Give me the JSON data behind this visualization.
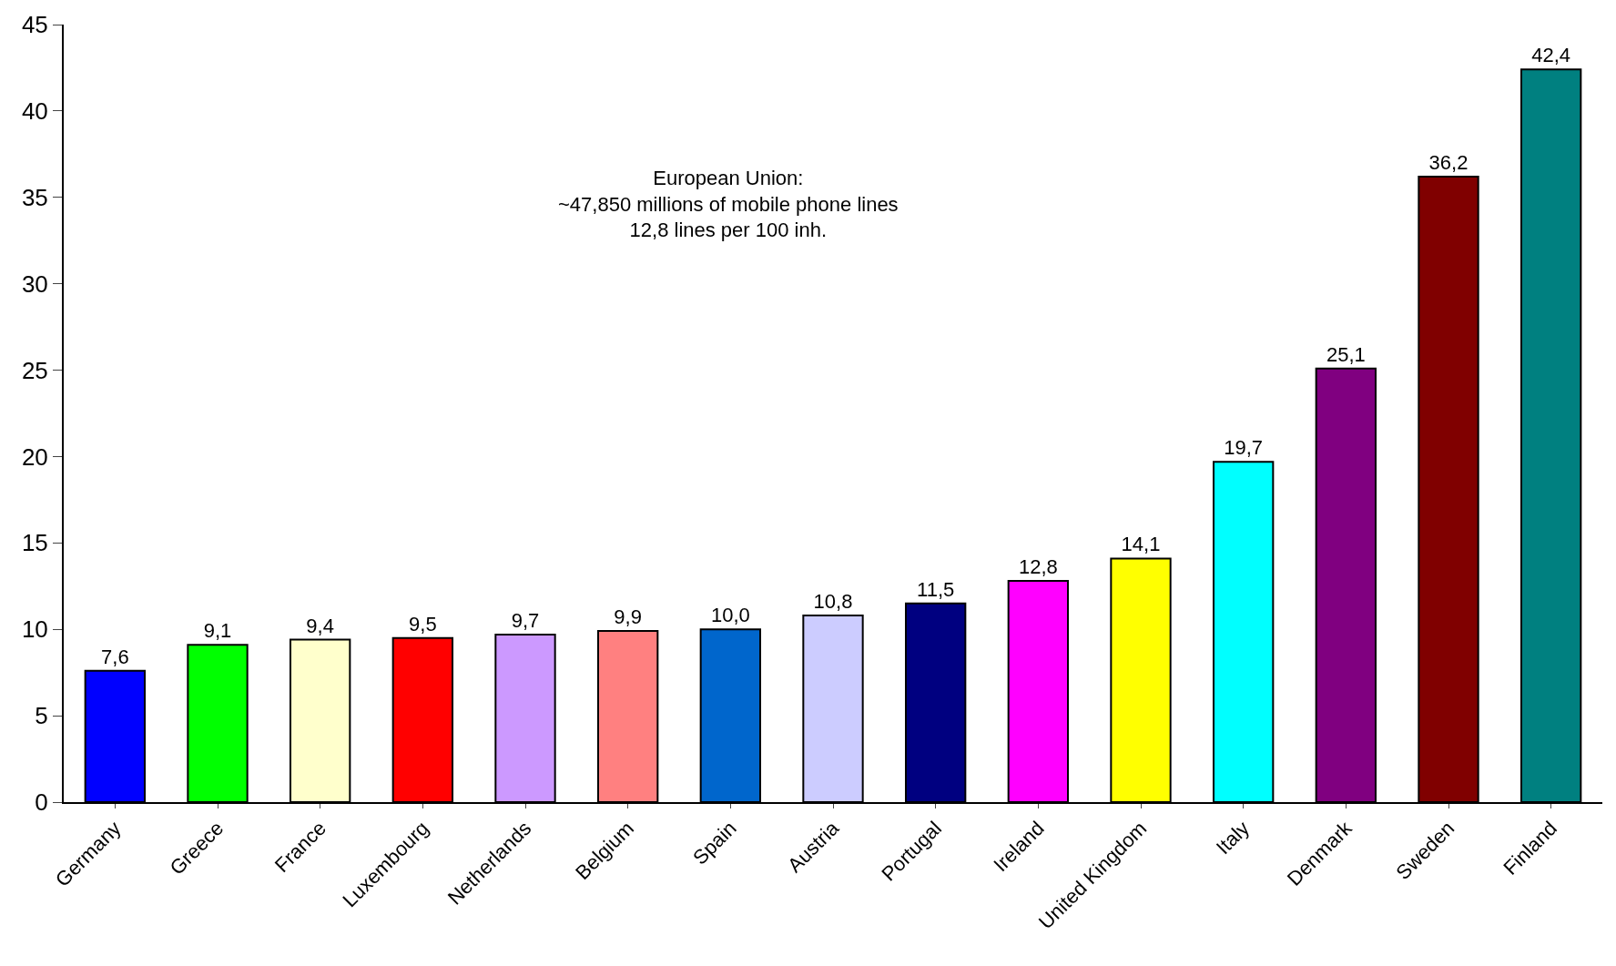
{
  "chart_data": {
    "type": "bar",
    "categories": [
      "Germany",
      "Greece",
      "France",
      "Luxembourg",
      "Netherlands",
      "Belgium",
      "Spain",
      "Austria",
      "Portugal",
      "Ireland",
      "United Kingdom",
      "Italy",
      "Denmark",
      "Sweden",
      "Finland"
    ],
    "values": [
      7.6,
      9.1,
      9.4,
      9.5,
      9.7,
      9.9,
      10.0,
      10.8,
      11.5,
      12.8,
      14.1,
      19.7,
      25.1,
      36.2,
      42.4
    ],
    "colors": [
      "#0000ff",
      "#00ff00",
      "#ffffcc",
      "#ff0000",
      "#cc99ff",
      "#ff8080",
      "#0066cc",
      "#ccccff",
      "#000080",
      "#ff00ff",
      "#ffff00",
      "#00ffff",
      "#800080",
      "#800000",
      "#008080"
    ],
    "value_labels": [
      "7,6",
      "9,1",
      "9,4",
      "9,5",
      "9,7",
      "9,9",
      "10,0",
      "10,8",
      "11,5",
      "12,8",
      "14,1",
      "19,7",
      "25,1",
      "36,2",
      "42,4"
    ],
    "ylim": [
      0,
      45
    ],
    "yticks": [
      0,
      5,
      10,
      15,
      20,
      25,
      30,
      35,
      40,
      45
    ],
    "annotations": [
      "European Union:\n~47,850 millions of mobile phone lines\n12,8 lines per 100 inh."
    ]
  }
}
